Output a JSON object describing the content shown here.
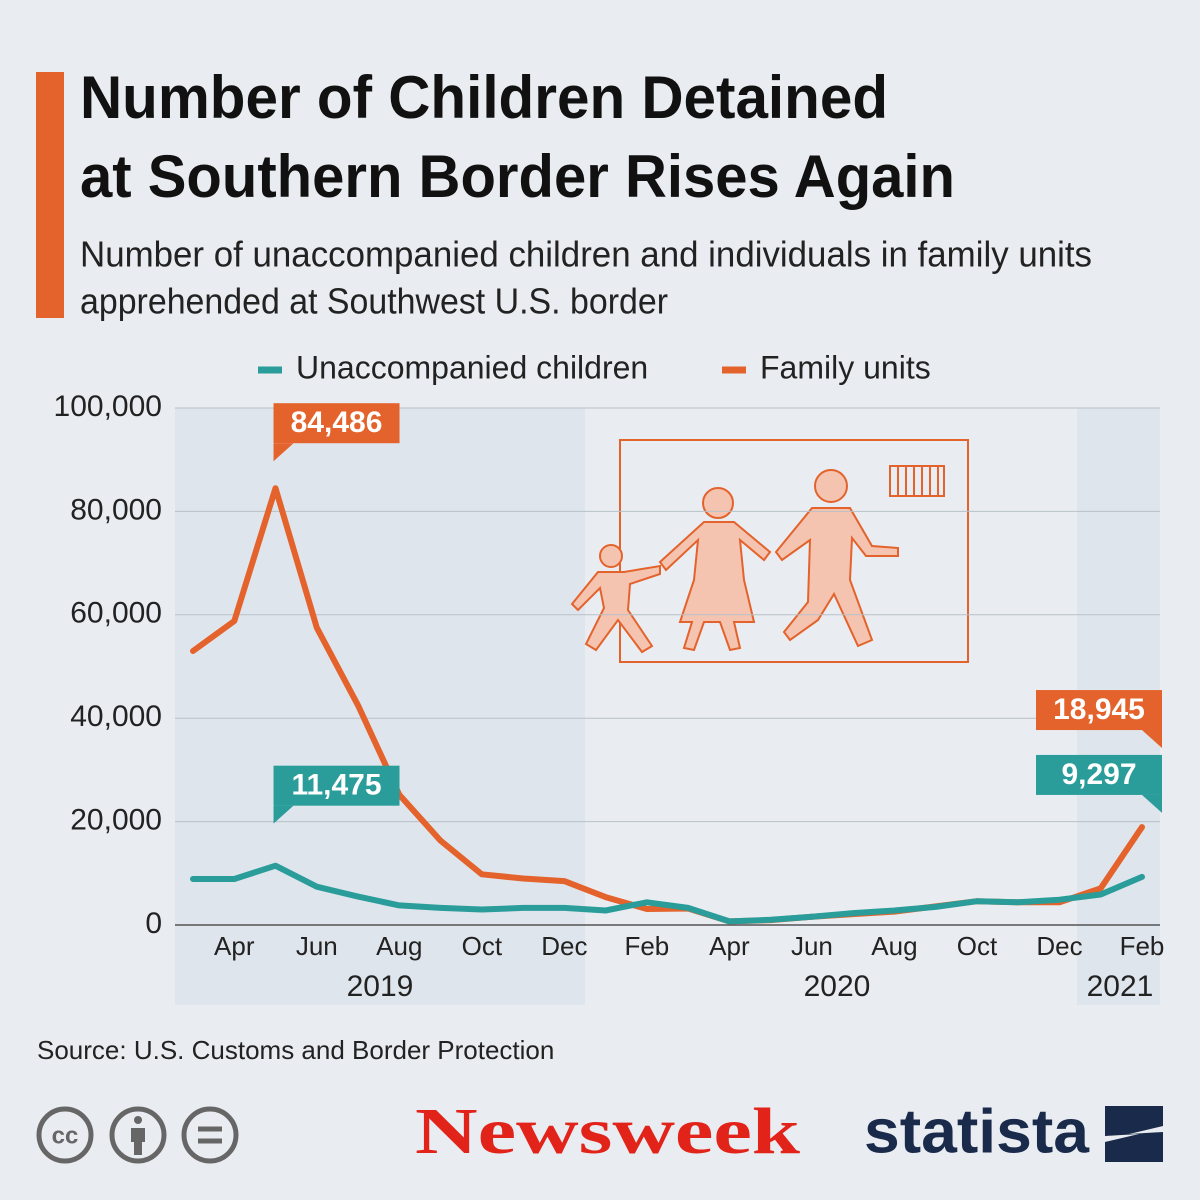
{
  "chart_data": {
    "type": "line",
    "title": [
      "Number of Children Detained",
      "at Southern Border Rises Again"
    ],
    "subtitle": [
      "Number of unaccompanied children and individuals in family units",
      "apprehended at Southwest U.S. border"
    ],
    "categories": [
      null,
      "Apr",
      null,
      "Jun",
      null,
      "Aug",
      null,
      "Oct",
      null,
      "Dec",
      null,
      "Feb",
      null,
      "Apr",
      null,
      "Jun",
      null,
      "Aug",
      null,
      "Oct",
      null,
      "Dec",
      null,
      "Feb"
    ],
    "years": [
      "2019",
      "2020",
      "2021"
    ],
    "series": [
      {
        "name": "Unaccompanied children",
        "color": "#2a9d9b",
        "values": [
          8900,
          8900,
          11475,
          7400,
          5500,
          3800,
          3300,
          3000,
          3300,
          3300,
          2800,
          4400,
          3300,
          700,
          1000,
          1600,
          2300,
          2800,
          3500,
          4600,
          4400,
          4900,
          5900,
          9297
        ],
        "value_labels": [
          null,
          null,
          "11,475",
          null,
          null,
          null,
          null,
          null,
          null,
          null,
          null,
          null,
          null,
          null,
          null,
          null,
          null,
          null,
          null,
          null,
          null,
          null,
          null,
          "9,297"
        ]
      },
      {
        "name": "Family units",
        "color": "#e4622b",
        "values": [
          53000,
          58800,
          84486,
          57500,
          42500,
          25200,
          16300,
          9800,
          9000,
          8500,
          5400,
          3100,
          3200,
          700,
          950,
          1600,
          2100,
          2600,
          3600,
          4600,
          4400,
          4400,
          7100,
          18945
        ],
        "value_labels": [
          null,
          null,
          "84,486",
          null,
          null,
          null,
          null,
          null,
          null,
          null,
          null,
          null,
          null,
          null,
          null,
          null,
          null,
          null,
          null,
          null,
          null,
          null,
          null,
          "18,945"
        ]
      }
    ],
    "ylim": [
      0,
      100000
    ],
    "yticks": [
      0,
      {
        "value": 20000,
        "label": "20,000"
      },
      {
        "value": 40000,
        "label": "40,000"
      },
      {
        "value": 60000,
        "label": "60,000"
      },
      {
        "value": 80000,
        "label": "80,000"
      },
      {
        "value": 100000,
        "label": "100,000"
      }
    ],
    "grid": true,
    "legend": "top",
    "source": "Source: U.S. Customs and Border Protection",
    "license_icon": "cc",
    "publisher": "Newsweek",
    "brand": "statista"
  }
}
